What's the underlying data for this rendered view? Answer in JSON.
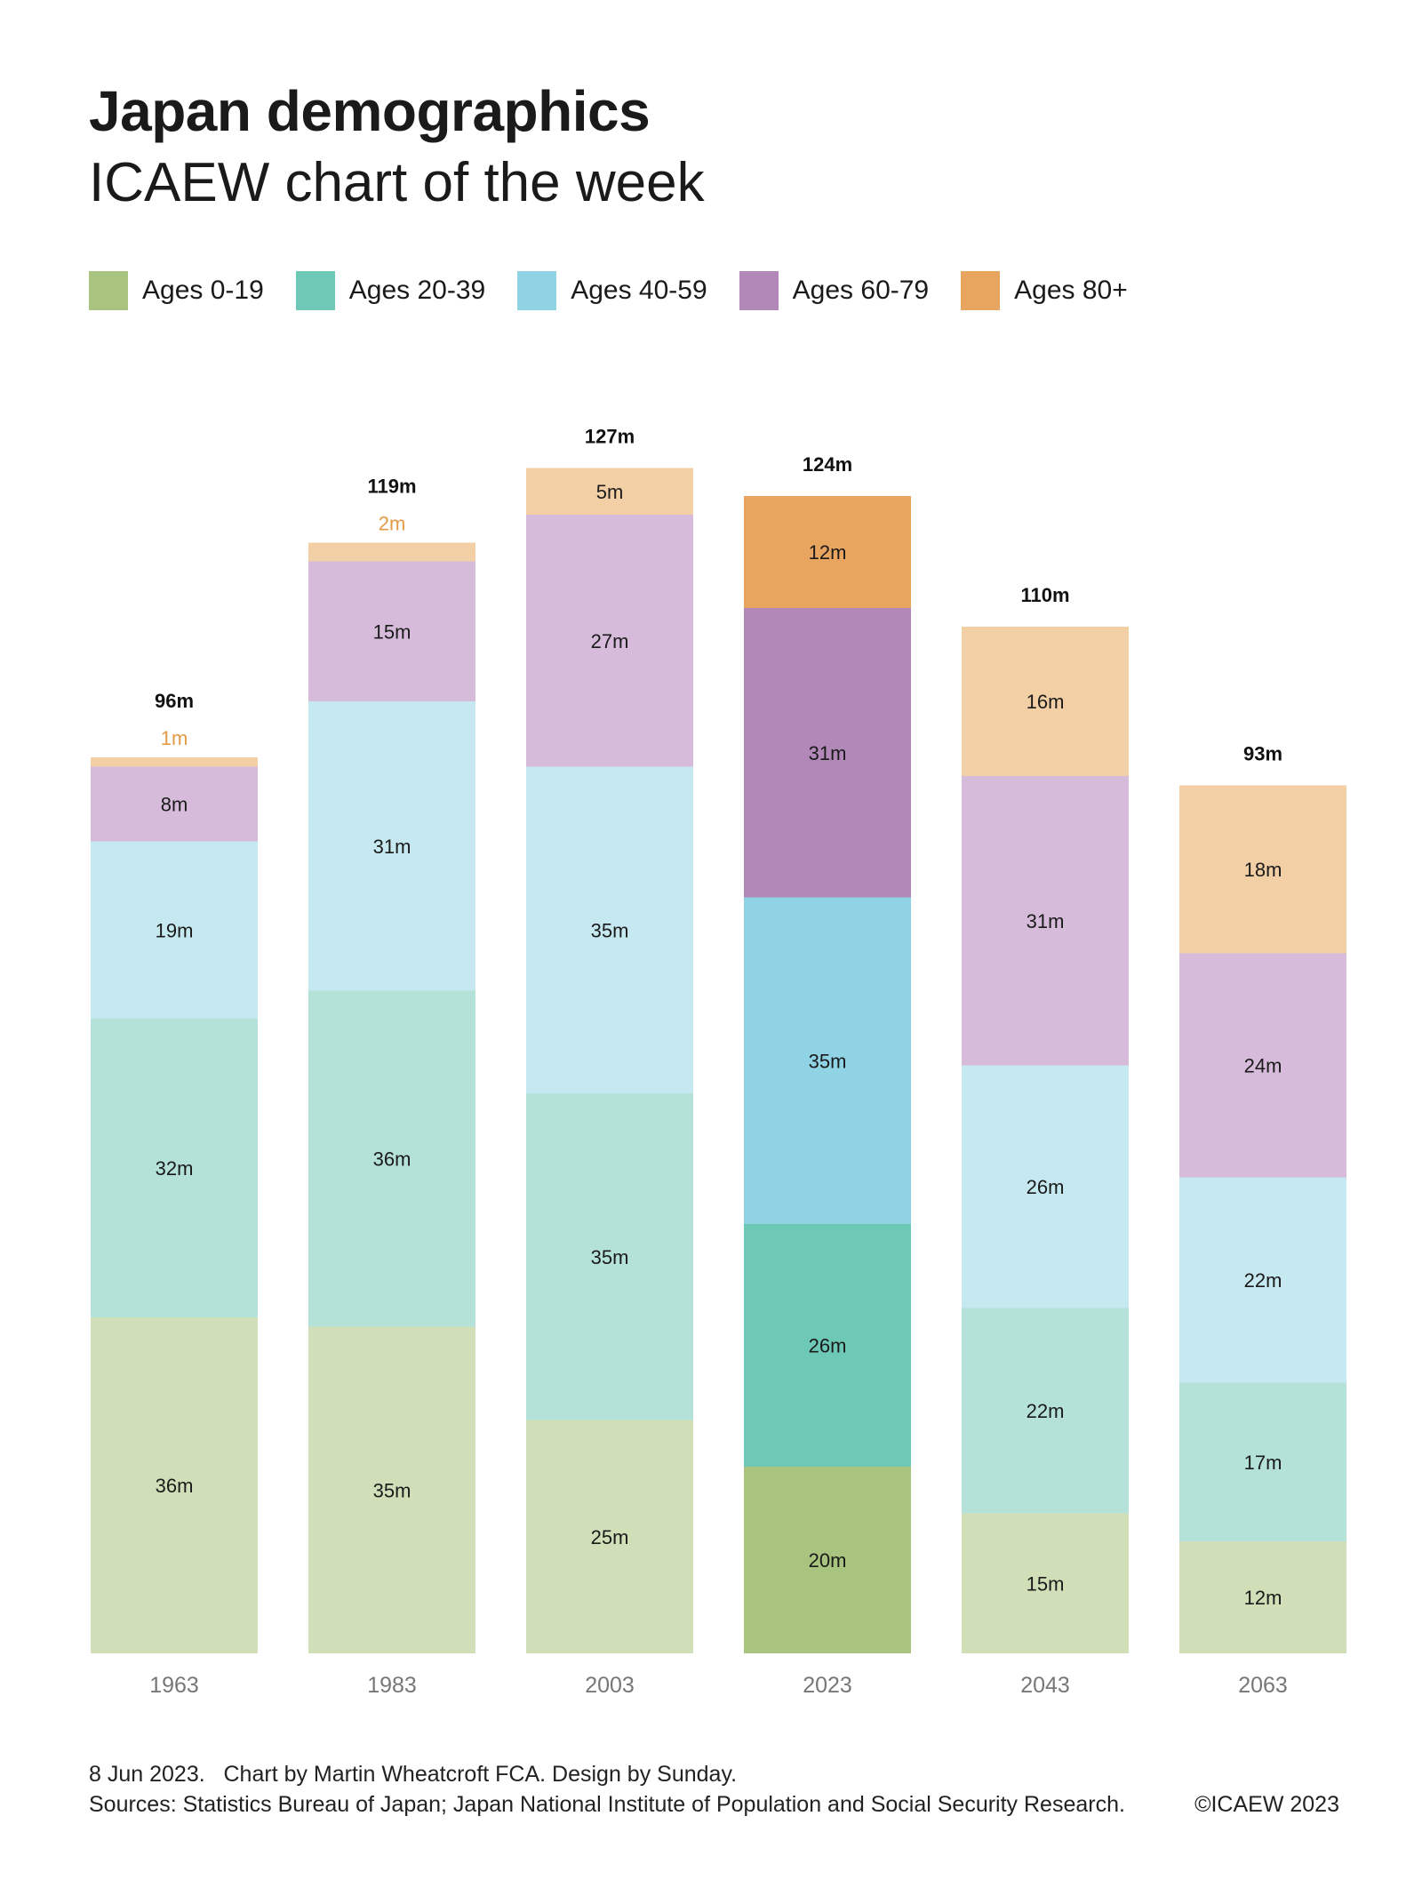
{
  "header": {
    "title": "Japan demographics",
    "subtitle": "ICAEW chart of the week"
  },
  "legend": [
    {
      "label": "Ages 0-19",
      "color": "#a9c47f"
    },
    {
      "label": "Ages 20-39",
      "color": "#6dc8b6"
    },
    {
      "label": "Ages 40-59",
      "color": "#8fd3e4"
    },
    {
      "label": "Ages 60-79",
      "color": "#b288b9"
    },
    {
      "label": "Ages 80+",
      "color": "#e8a560"
    }
  ],
  "footer": {
    "line1": "8 Jun 2023.   Chart by Martin Wheatcroft FCA. Design by Sunday.",
    "line2": "Sources: Statistics Bureau of Japan; Japan National Institute of Population and Social Security Research.",
    "copyright": "©ICAEW 2023"
  },
  "chart_data": {
    "type": "bar",
    "stacked": true,
    "title": "Japan demographics",
    "subtitle": "ICAEW chart of the week",
    "xlabel": "",
    "ylabel": "",
    "categories": [
      "1963",
      "1983",
      "2003",
      "2023",
      "2043",
      "2063"
    ],
    "totals": [
      96,
      119,
      127,
      124,
      110,
      93
    ],
    "total_labels": [
      "96m",
      "119m",
      "127m",
      "124m",
      "110m",
      "93m"
    ],
    "highlight_category": "2023",
    "series": [
      {
        "name": "Ages 0-19",
        "color": "#a9c47f",
        "light_color": "#d1dfb9",
        "values": [
          36,
          35,
          25,
          20,
          15,
          12
        ],
        "labels": [
          "36m",
          "35m",
          "25m",
          "20m",
          "15m",
          "12m"
        ]
      },
      {
        "name": "Ages 20-39",
        "color": "#6dc8b6",
        "light_color": "#b5e2d8",
        "values": [
          32,
          36,
          35,
          26,
          22,
          17
        ],
        "labels": [
          "32m",
          "36m",
          "35m",
          "26m",
          "22m",
          "17m"
        ]
      },
      {
        "name": "Ages 40-59",
        "color": "#8fd3e4",
        "light_color": "#c6e8f0",
        "values": [
          19,
          31,
          35,
          35,
          26,
          22
        ],
        "labels": [
          "19m",
          "31m",
          "35m",
          "35m",
          "26m",
          "22m"
        ]
      },
      {
        "name": "Ages 60-79",
        "color": "#b288b9",
        "light_color": "#d6bcda",
        "values": [
          8,
          15,
          27,
          31,
          31,
          24
        ],
        "labels": [
          "8m",
          "15m",
          "27m",
          "31m",
          "31m",
          "24m"
        ]
      },
      {
        "name": "Ages 80+",
        "color": "#e8a560",
        "light_color": "#f3cfa5",
        "values": [
          1,
          2,
          5,
          12,
          16,
          18
        ],
        "labels": [
          "1m",
          "2m",
          "5m",
          "12m",
          "16m",
          "18m"
        ],
        "outside_label_color": "#e39a45"
      }
    ],
    "ylim": [
      0,
      127
    ],
    "grid": false,
    "legend_position": "top-left"
  }
}
